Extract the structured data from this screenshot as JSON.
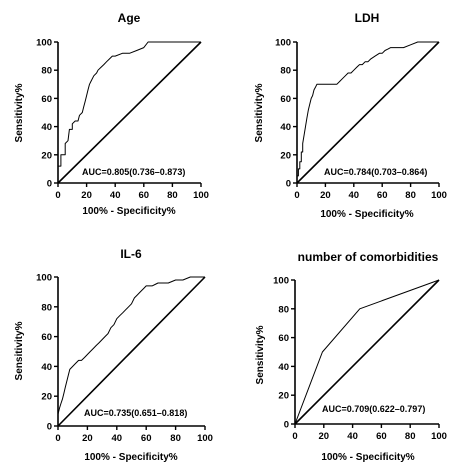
{
  "chart_data": [
    {
      "type": "line",
      "title": "Age",
      "xlabel": "100% - Specificity%",
      "ylabel": "Sensitivity%",
      "xlim": [
        0,
        100
      ],
      "ylim": [
        0,
        100
      ],
      "xticks": [
        "0",
        "20",
        "40",
        "60",
        "80",
        "100"
      ],
      "yticks": [
        "0",
        "20",
        "40",
        "60",
        "80",
        "100"
      ],
      "annotation": "AUC=0.805(0.736–0.873)",
      "series": [
        {
          "x": [
            0,
            0,
            2,
            2,
            5,
            5,
            7,
            8,
            10,
            10,
            12,
            14,
            15,
            17,
            18,
            19,
            20,
            21,
            22,
            23,
            25,
            27,
            28,
            30,
            32,
            34,
            36,
            38,
            40,
            45,
            50,
            55,
            60,
            63,
            66,
            70,
            75,
            80,
            85,
            90,
            95,
            100
          ],
          "y": [
            0,
            12,
            12,
            20,
            20,
            28,
            30,
            38,
            38,
            42,
            44,
            44,
            48,
            50,
            54,
            58,
            62,
            66,
            70,
            72,
            76,
            78,
            80,
            82,
            84,
            86,
            88,
            90,
            90,
            92,
            92,
            94,
            96,
            100,
            100,
            100,
            100,
            100,
            100,
            100,
            100,
            100
          ]
        },
        {
          "x": [
            0,
            100
          ],
          "y": [
            0,
            100
          ]
        }
      ]
    },
    {
      "type": "line",
      "title": "LDH",
      "xlabel": "100% - Specificity%",
      "ylabel": "Sensitivity%",
      "xlim": [
        0,
        100
      ],
      "ylim": [
        0,
        100
      ],
      "xticks": [
        "0",
        "20",
        "40",
        "60",
        "80",
        "100"
      ],
      "yticks": [
        "0",
        "20",
        "40",
        "60",
        "80",
        "100"
      ],
      "annotation": "AUC=0.784(0.703–0.864)",
      "series": [
        {
          "x": [
            0,
            0,
            1,
            1,
            2,
            2,
            3,
            3,
            4,
            4,
            5,
            6,
            7,
            8,
            9,
            10,
            11,
            12,
            13,
            14,
            15,
            16,
            17,
            18,
            20,
            22,
            25,
            28,
            30,
            32,
            34,
            36,
            38,
            40,
            42,
            44,
            46,
            48,
            50,
            52,
            55,
            58,
            60,
            62,
            64,
            66,
            70,
            75,
            80,
            85,
            90,
            95,
            100
          ],
          "y": [
            0,
            5,
            5,
            10,
            10,
            15,
            15,
            22,
            22,
            28,
            34,
            40,
            46,
            52,
            56,
            60,
            62,
            66,
            68,
            70,
            70,
            70,
            70,
            70,
            70,
            70,
            70,
            70,
            72,
            74,
            76,
            78,
            78,
            80,
            82,
            84,
            84,
            86,
            86,
            88,
            90,
            92,
            92,
            94,
            95,
            96,
            96,
            96,
            98,
            100,
            100,
            100,
            100
          ]
        },
        {
          "x": [
            0,
            100
          ],
          "y": [
            0,
            100
          ]
        }
      ]
    },
    {
      "type": "line",
      "title": "IL-6",
      "xlabel": "100% - Specificity%",
      "ylabel": "Sensitivity%",
      "xlim": [
        0,
        100
      ],
      "ylim": [
        0,
        100
      ],
      "xticks": [
        "0",
        "20",
        "40",
        "60",
        "80",
        "100"
      ],
      "yticks": [
        "0",
        "20",
        "40",
        "60",
        "80",
        "100"
      ],
      "annotation": "AUC=0.735(0.651–0.818)",
      "series": [
        {
          "x": [
            0,
            0,
            1,
            2,
            3,
            4,
            5,
            6,
            7,
            8,
            10,
            12,
            14,
            16,
            18,
            20,
            22,
            24,
            26,
            28,
            30,
            32,
            34,
            36,
            38,
            40,
            42,
            44,
            46,
            48,
            50,
            52,
            54,
            56,
            58,
            60,
            62,
            64,
            66,
            68,
            70,
            75,
            80,
            85,
            90,
            95,
            100
          ],
          "y": [
            0,
            8,
            12,
            15,
            18,
            22,
            26,
            30,
            34,
            38,
            40,
            42,
            44,
            44,
            46,
            48,
            50,
            52,
            54,
            56,
            58,
            60,
            62,
            66,
            68,
            72,
            74,
            76,
            78,
            80,
            82,
            86,
            88,
            90,
            92,
            94,
            94,
            94,
            95,
            96,
            96,
            96,
            98,
            98,
            100,
            100,
            100
          ]
        },
        {
          "x": [
            0,
            100
          ],
          "y": [
            0,
            100
          ]
        }
      ]
    },
    {
      "type": "line",
      "title": "number of comorbidities",
      "xlabel": "100% - Specificity%",
      "ylabel": "Sensitivity%",
      "xlim": [
        0,
        100
      ],
      "ylim": [
        0,
        100
      ],
      "xticks": [
        "0",
        "20",
        "40",
        "60",
        "80",
        "100"
      ],
      "yticks": [
        "0",
        "20",
        "40",
        "60",
        "80",
        "100"
      ],
      "annotation": "AUC=0.709(0.622–0.797)",
      "series": [
        {
          "x": [
            0,
            19,
            45,
            100
          ],
          "y": [
            0,
            50,
            80,
            100
          ]
        },
        {
          "x": [
            0,
            100
          ],
          "y": [
            0,
            100
          ]
        }
      ]
    }
  ]
}
